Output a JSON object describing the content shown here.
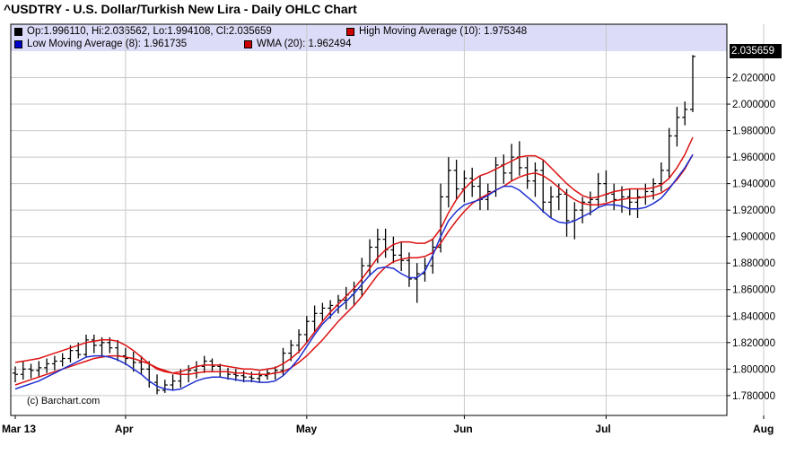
{
  "chart_data": {
    "type": "line",
    "title": "^USDTRY - U.S. Dollar/Turkish New Lira - Daily OHLC Chart",
    "legend": [
      {
        "label": "Op:1.996110, Hi:2.036562, Lo:1.994108, Cl:2.035659",
        "color": "#000000"
      },
      {
        "label": "High Moving Average (10): 1.975348",
        "color": "#cc0000"
      },
      {
        "label": "Low Moving Average (8): 1.961735",
        "color": "#0000cc"
      },
      {
        "label": "WMA (20): 1.962494",
        "color": "#cc0000"
      }
    ],
    "ylim": [
      1.765,
      2.04
    ],
    "yticks": [
      "1.780000",
      "1.800000",
      "1.820000",
      "1.840000",
      "1.860000",
      "1.880000",
      "1.900000",
      "1.920000",
      "1.940000",
      "1.960000",
      "1.980000",
      "2.000000",
      "2.020000"
    ],
    "ytick_values": [
      1.78,
      1.8,
      1.82,
      1.84,
      1.86,
      1.88,
      1.9,
      1.92,
      1.94,
      1.96,
      1.98,
      2.0,
      2.02
    ],
    "xticks": [
      {
        "label": "Mar 13",
        "index": 0
      },
      {
        "label": "Apr",
        "index": 14
      },
      {
        "label": "May",
        "index": 37
      },
      {
        "label": "Jun",
        "index": 57
      },
      {
        "label": "Jul",
        "index": 75
      },
      {
        "label": "Aug",
        "index": 95
      }
    ],
    "last_price": "2.035659",
    "grid": true,
    "ohlc": [
      [
        1.797,
        1.802,
        1.79,
        1.796
      ],
      [
        1.796,
        1.806,
        1.792,
        1.8
      ],
      [
        1.8,
        1.804,
        1.793,
        1.799
      ],
      [
        1.799,
        1.806,
        1.794,
        1.801
      ],
      [
        1.801,
        1.808,
        1.797,
        1.804
      ],
      [
        1.804,
        1.81,
        1.799,
        1.806
      ],
      [
        1.806,
        1.812,
        1.802,
        1.808
      ],
      [
        1.808,
        1.818,
        1.805,
        1.814
      ],
      [
        1.814,
        1.82,
        1.808,
        1.811
      ],
      [
        1.811,
        1.826,
        1.809,
        1.822
      ],
      [
        1.822,
        1.826,
        1.812,
        1.818
      ],
      [
        1.818,
        1.824,
        1.81,
        1.82
      ],
      [
        1.82,
        1.824,
        1.812,
        1.816
      ],
      [
        1.816,
        1.822,
        1.806,
        1.81
      ],
      [
        1.81,
        1.816,
        1.803,
        1.808
      ],
      [
        1.808,
        1.813,
        1.798,
        1.805
      ],
      [
        1.805,
        1.81,
        1.796,
        1.8
      ],
      [
        1.8,
        1.806,
        1.786,
        1.79
      ],
      [
        1.79,
        1.796,
        1.781,
        1.784
      ],
      [
        1.784,
        1.792,
        1.782,
        1.788
      ],
      [
        1.788,
        1.796,
        1.784,
        1.791
      ],
      [
        1.791,
        1.8,
        1.786,
        1.796
      ],
      [
        1.796,
        1.803,
        1.79,
        1.799
      ],
      [
        1.799,
        1.806,
        1.793,
        1.802
      ],
      [
        1.802,
        1.81,
        1.797,
        1.806
      ],
      [
        1.806,
        1.808,
        1.798,
        1.802
      ],
      [
        1.802,
        1.804,
        1.794,
        1.798
      ],
      [
        1.798,
        1.801,
        1.792,
        1.796
      ],
      [
        1.796,
        1.8,
        1.791,
        1.795
      ],
      [
        1.795,
        1.799,
        1.79,
        1.794
      ],
      [
        1.794,
        1.798,
        1.79,
        1.793
      ],
      [
        1.793,
        1.798,
        1.79,
        1.795
      ],
      [
        1.795,
        1.8,
        1.792,
        1.797
      ],
      [
        1.797,
        1.802,
        1.792,
        1.799
      ],
      [
        1.799,
        1.816,
        1.795,
        1.812
      ],
      [
        1.812,
        1.822,
        1.806,
        1.818
      ],
      [
        1.818,
        1.83,
        1.812,
        1.826
      ],
      [
        1.826,
        1.84,
        1.82,
        1.836
      ],
      [
        1.836,
        1.848,
        1.828,
        1.842
      ],
      [
        1.842,
        1.85,
        1.836,
        1.846
      ],
      [
        1.846,
        1.852,
        1.838,
        1.848
      ],
      [
        1.848,
        1.856,
        1.842,
        1.852
      ],
      [
        1.852,
        1.862,
        1.845,
        1.856
      ],
      [
        1.856,
        1.866,
        1.848,
        1.86
      ],
      [
        1.86,
        1.884,
        1.855,
        1.878
      ],
      [
        1.878,
        1.898,
        1.87,
        1.892
      ],
      [
        1.892,
        1.906,
        1.88,
        1.898
      ],
      [
        1.898,
        1.906,
        1.884,
        1.89
      ],
      [
        1.89,
        1.9,
        1.88,
        1.886
      ],
      [
        1.886,
        1.896,
        1.874,
        1.882
      ],
      [
        1.882,
        1.888,
        1.862,
        1.868
      ],
      [
        1.868,
        1.88,
        1.85,
        1.872
      ],
      [
        1.872,
        1.884,
        1.866,
        1.878
      ],
      [
        1.878,
        1.898,
        1.872,
        1.892
      ],
      [
        1.892,
        1.94,
        1.888,
        1.93
      ],
      [
        1.93,
        1.96,
        1.922,
        1.95
      ],
      [
        1.95,
        1.958,
        1.928,
        1.936
      ],
      [
        1.936,
        1.95,
        1.926,
        1.944
      ],
      [
        1.944,
        1.952,
        1.93,
        1.938
      ],
      [
        1.938,
        1.946,
        1.92,
        1.928
      ],
      [
        1.928,
        1.94,
        1.92,
        1.934
      ],
      [
        1.934,
        1.96,
        1.93,
        1.954
      ],
      [
        1.954,
        1.962,
        1.94,
        1.948
      ],
      [
        1.948,
        1.97,
        1.942,
        1.96
      ],
      [
        1.96,
        1.972,
        1.946,
        1.952
      ],
      [
        1.952,
        1.96,
        1.936,
        1.942
      ],
      [
        1.942,
        1.956,
        1.93,
        1.95
      ],
      [
        1.95,
        1.958,
        1.918,
        1.926
      ],
      [
        1.926,
        1.938,
        1.914,
        1.93
      ],
      [
        1.93,
        1.94,
        1.92,
        1.932
      ],
      [
        1.932,
        1.936,
        1.9,
        1.912
      ],
      [
        1.912,
        1.926,
        1.898,
        1.92
      ],
      [
        1.92,
        1.93,
        1.91,
        1.926
      ],
      [
        1.926,
        1.934,
        1.916,
        1.928
      ],
      [
        1.928,
        1.948,
        1.922,
        1.94
      ],
      [
        1.94,
        1.95,
        1.926,
        1.932
      ],
      [
        1.932,
        1.94,
        1.92,
        1.928
      ],
      [
        1.928,
        1.938,
        1.918,
        1.93
      ],
      [
        1.93,
        1.936,
        1.916,
        1.926
      ],
      [
        1.926,
        1.936,
        1.914,
        1.93
      ],
      [
        1.93,
        1.94,
        1.924,
        1.934
      ],
      [
        1.934,
        1.944,
        1.928,
        1.94
      ],
      [
        1.94,
        1.956,
        1.934,
        1.95
      ],
      [
        1.95,
        1.982,
        1.944,
        1.976
      ],
      [
        1.976,
        1.998,
        1.968,
        1.99
      ],
      [
        1.99,
        2.002,
        1.984,
        1.996
      ],
      [
        1.996,
        2.037,
        1.994,
        2.036
      ]
    ],
    "series": [
      {
        "name": "High Moving Average (10)",
        "color": "#dd1111",
        "values": [
          1.805,
          1.806,
          1.807,
          1.808,
          1.81,
          1.812,
          1.814,
          1.816,
          1.818,
          1.82,
          1.821,
          1.822,
          1.822,
          1.821,
          1.818,
          1.814,
          1.809,
          1.804,
          1.8,
          1.798,
          1.797,
          1.798,
          1.8,
          1.802,
          1.803,
          1.803,
          1.803,
          1.802,
          1.801,
          1.8,
          1.8,
          1.799,
          1.8,
          1.801,
          1.804,
          1.808,
          1.813,
          1.82,
          1.828,
          1.836,
          1.843,
          1.849,
          1.855,
          1.861,
          1.868,
          1.876,
          1.884,
          1.89,
          1.894,
          1.896,
          1.896,
          1.895,
          1.895,
          1.898,
          1.906,
          1.918,
          1.928,
          1.936,
          1.942,
          1.946,
          1.948,
          1.951,
          1.954,
          1.957,
          1.96,
          1.961,
          1.961,
          1.958,
          1.952,
          1.946,
          1.94,
          1.935,
          1.931,
          1.929,
          1.93,
          1.932,
          1.934,
          1.935,
          1.936,
          1.936,
          1.936,
          1.937,
          1.939,
          1.944,
          1.952,
          1.962,
          1.975
        ]
      },
      {
        "name": "WMA (20)",
        "color": "#dd1111",
        "values": [
          1.788,
          1.79,
          1.792,
          1.794,
          1.796,
          1.798,
          1.8,
          1.802,
          1.804,
          1.806,
          1.808,
          1.809,
          1.81,
          1.81,
          1.809,
          1.808,
          1.806,
          1.804,
          1.801,
          1.799,
          1.797,
          1.796,
          1.796,
          1.797,
          1.798,
          1.798,
          1.798,
          1.798,
          1.797,
          1.797,
          1.796,
          1.796,
          1.796,
          1.797,
          1.798,
          1.801,
          1.805,
          1.81,
          1.816,
          1.822,
          1.829,
          1.836,
          1.842,
          1.848,
          1.855,
          1.863,
          1.871,
          1.877,
          1.881,
          1.883,
          1.884,
          1.884,
          1.885,
          1.888,
          1.895,
          1.904,
          1.912,
          1.919,
          1.925,
          1.929,
          1.932,
          1.935,
          1.938,
          1.942,
          1.945,
          1.947,
          1.948,
          1.946,
          1.942,
          1.937,
          1.932,
          1.928,
          1.925,
          1.924,
          1.924,
          1.925,
          1.927,
          1.928,
          1.929,
          1.929,
          1.93,
          1.931,
          1.933,
          1.937,
          1.943,
          1.951,
          1.962
        ]
      },
      {
        "name": "Low Moving Average (8)",
        "color": "#1f2fd0",
        "values": [
          1.785,
          1.787,
          1.789,
          1.791,
          1.794,
          1.797,
          1.8,
          1.803,
          1.806,
          1.809,
          1.81,
          1.81,
          1.809,
          1.807,
          1.804,
          1.8,
          1.796,
          1.791,
          1.787,
          1.785,
          1.784,
          1.785,
          1.788,
          1.791,
          1.793,
          1.794,
          1.794,
          1.793,
          1.792,
          1.791,
          1.791,
          1.79,
          1.79,
          1.791,
          1.795,
          1.801,
          1.808,
          1.817,
          1.826,
          1.834,
          1.84,
          1.846,
          1.851,
          1.857,
          1.864,
          1.871,
          1.876,
          1.877,
          1.876,
          1.872,
          1.869,
          1.869,
          1.874,
          1.886,
          1.9,
          1.912,
          1.919,
          1.924,
          1.926,
          1.928,
          1.931,
          1.935,
          1.938,
          1.938,
          1.935,
          1.93,
          1.925,
          1.919,
          1.914,
          1.911,
          1.91,
          1.912,
          1.915,
          1.918,
          1.922,
          1.924,
          1.924,
          1.923,
          1.921,
          1.921,
          1.922,
          1.925,
          1.929,
          1.936,
          1.944,
          1.952,
          1.962
        ]
      }
    ]
  }
}
